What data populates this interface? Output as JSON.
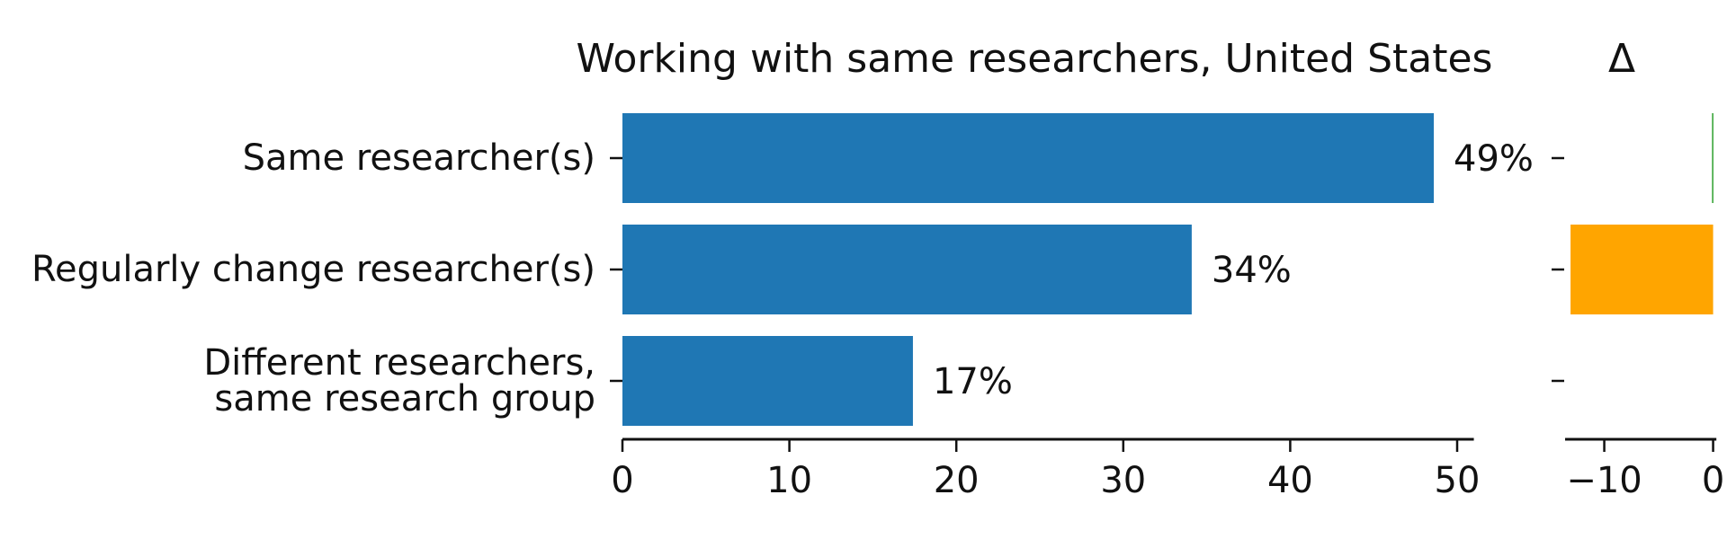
{
  "chart_data": [
    {
      "type": "bar",
      "orientation": "horizontal",
      "title": "Working with same researchers, United States",
      "categories": [
        "Same researcher(s)",
        "Regularly change researcher(s)",
        "Different researchers,\nsame research group"
      ],
      "values": [
        48.6,
        34.1,
        17.4
      ],
      "data_labels": [
        "49%",
        "34%",
        "17%"
      ],
      "xlim": [
        0,
        51
      ],
      "xticks": [
        "0",
        "10",
        "20",
        "30",
        "40",
        "50"
      ],
      "xtick_values": [
        0,
        10,
        20,
        30,
        40,
        50
      ],
      "grid": false,
      "color": "#1f77b4"
    },
    {
      "type": "bar",
      "orientation": "horizontal",
      "title": "Δ",
      "categories": [
        "Same researcher(s)",
        "Regularly change researcher(s)",
        "Different researchers,\nsame research group"
      ],
      "values": [
        -0.1,
        -13.1,
        0
      ],
      "colors": [
        "#2ca02c",
        "#ffa500",
        "#cccccc"
      ],
      "xlim": [
        -13.6,
        0.3
      ],
      "xticks": [
        "−10",
        "0"
      ],
      "xtick_values": [
        -10,
        0
      ],
      "grid": false
    }
  ]
}
